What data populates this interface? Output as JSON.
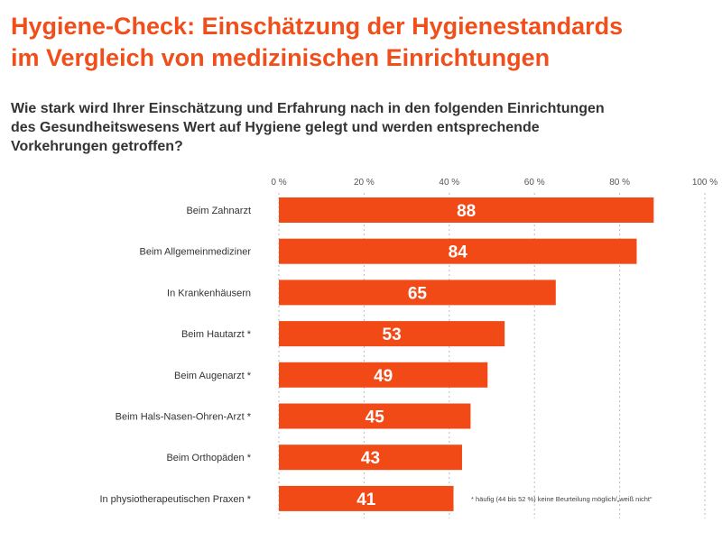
{
  "title_line1": "Hygiene-Check: Einschätzung der Hygienestandards",
  "title_line2": "im Vergleich von medizinischen Einrichtungen",
  "subtitle_line1": "Wie stark wird Ihrer Einschätzung und Erfahrung nach in den folgenden Einrichtungen",
  "subtitle_line2": "des Gesundheitswesens Wert auf Hygiene gelegt und werden entsprechende",
  "subtitle_line3": "Vorkehrungen getroffen?",
  "footnote": "* häufig (44 bis 52 %) keine Beurteilung möglich/„weiß nicht“",
  "colors": {
    "accent": "#f04e1a",
    "bar": "#f24a16",
    "text": "#333333",
    "grid": "#bbbbbb"
  },
  "chart_data": {
    "type": "bar",
    "orientation": "horizontal",
    "categories": [
      "Beim Zahnarzt",
      "Beim Allgemeinmediziner",
      "In Krankenhäusern",
      "Beim Hautarzt *",
      "Beim Augenarzt *",
      "Beim Hals-Nasen-Ohren-Arzt *",
      "Beim Orthopäden *",
      "In physiotherapeutischen Praxen *"
    ],
    "values": [
      88,
      84,
      65,
      53,
      49,
      45,
      43,
      41
    ],
    "xlim": [
      0,
      100
    ],
    "ticks": [
      0,
      20,
      40,
      60,
      80,
      100
    ],
    "tick_labels": [
      "0 %",
      "20 %",
      "40 %",
      "60 %",
      "80 %",
      "100 %"
    ],
    "grid": true,
    "axis_position": "top"
  }
}
